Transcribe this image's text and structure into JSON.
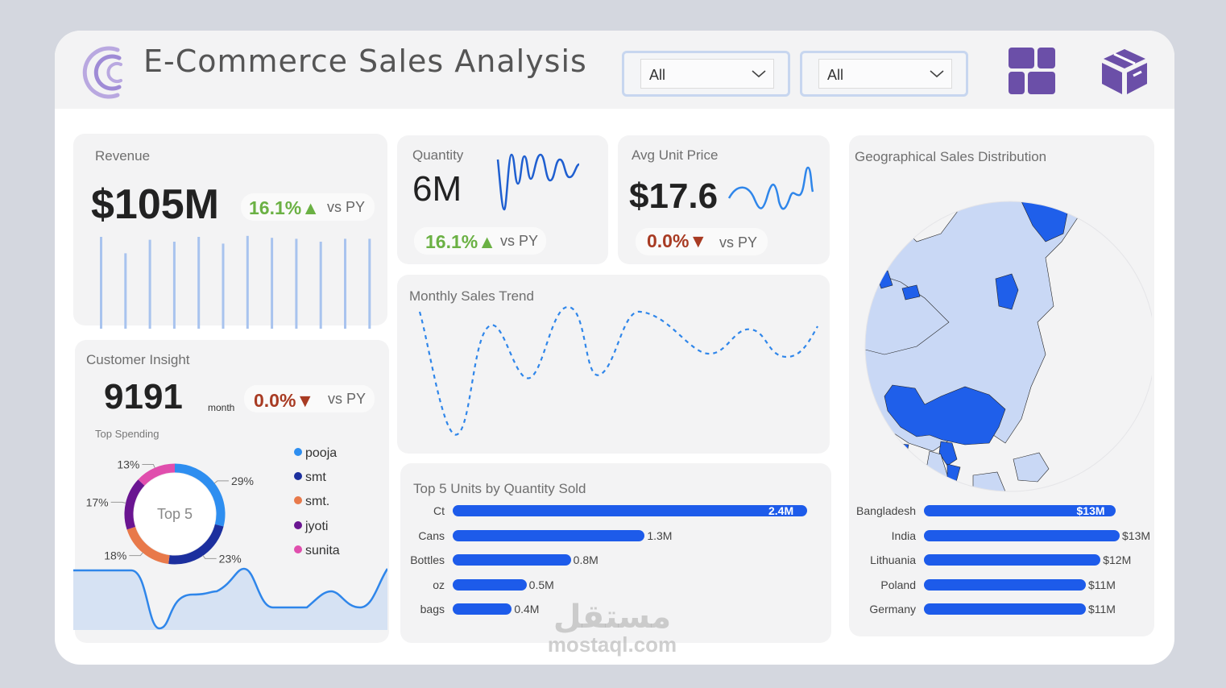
{
  "header": {
    "title": "E-Commerce Sales Analysis",
    "slicer1_value": "All",
    "slicer2_value": "All",
    "icons": [
      "dashboard-grid-icon",
      "product-box-icon"
    ],
    "accent_color": "#6b4fa8"
  },
  "revenue": {
    "label": "Revenue",
    "value": "$105M",
    "change": "16.1%▲",
    "vs": "vs PY",
    "bars": [
      95,
      78,
      92,
      90,
      95,
      88,
      96,
      94,
      93,
      90,
      93,
      93
    ]
  },
  "quantity": {
    "label": "Quantity",
    "value": "6M",
    "change": "16.1%▲",
    "vs": "vs PY"
  },
  "avg_price": {
    "label": "Avg Unit Price",
    "value": "$17.6",
    "change": "0.0%▼",
    "vs": "vs PY"
  },
  "monthly_trend": {
    "label": "Monthly Sales Trend"
  },
  "customer": {
    "label": "Customer Insight",
    "value": "9191",
    "unit": "month",
    "change": "0.0%▼",
    "vs": "vs PY",
    "donut_title": "Top Spending",
    "donut_center": "Top 5",
    "legend": [
      {
        "name": "pooja",
        "color": "#2e8ef0"
      },
      {
        "name": "smt",
        "color": "#1c2f9e"
      },
      {
        "name": "smt.",
        "color": "#e8794a"
      },
      {
        "name": "jyoti",
        "color": "#6a1591"
      },
      {
        "name": "sunita",
        "color": "#e04ead"
      }
    ],
    "slices": [
      {
        "name": "pooja",
        "value": 29,
        "label": "29%"
      },
      {
        "name": "smt",
        "value": 23,
        "label": "23%"
      },
      {
        "name": "smt.",
        "value": 18,
        "label": "18%"
      },
      {
        "name": "jyoti",
        "value": 17,
        "label": "17%"
      },
      {
        "name": "sunita",
        "value": 13,
        "label": "13%"
      }
    ]
  },
  "top_units": {
    "label": "Top 5 Units by Quantity Sold",
    "items": [
      {
        "name": "Ct",
        "value": 2.4,
        "label": "2.4M"
      },
      {
        "name": "Cans",
        "value": 1.3,
        "label": "1.3M"
      },
      {
        "name": "Bottles",
        "value": 0.8,
        "label": "0.8M"
      },
      {
        "name": "oz",
        "value": 0.5,
        "label": "0.5M"
      },
      {
        "name": "bags",
        "value": 0.4,
        "label": "0.4M"
      }
    ]
  },
  "geo": {
    "label": "Geographical Sales Distribution",
    "items": [
      {
        "name": "Bangladesh",
        "value": 13,
        "label": "$13M"
      },
      {
        "name": "India",
        "value": 13.3,
        "label": "$13M"
      },
      {
        "name": "Lithuania",
        "value": 12,
        "label": "$12M"
      },
      {
        "name": "Poland",
        "value": 11,
        "label": "$11M"
      },
      {
        "name": "Germany",
        "value": 11,
        "label": "$11M"
      }
    ]
  },
  "watermark": {
    "arabic": "مستقل",
    "latin": "mostaql.com"
  }
}
